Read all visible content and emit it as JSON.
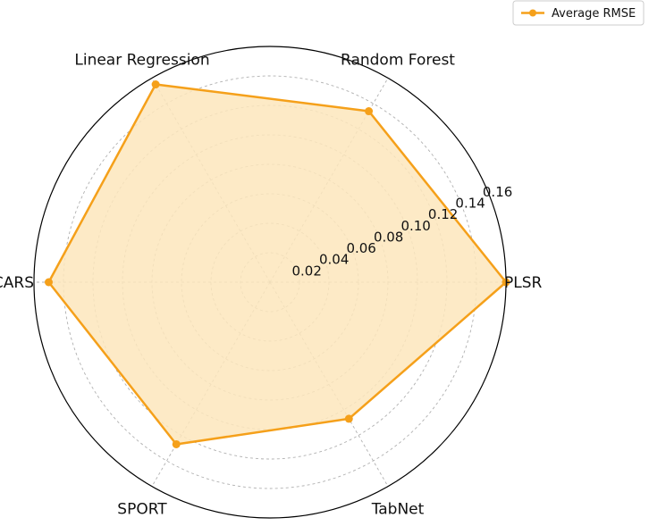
{
  "chart_data": {
    "type": "radar",
    "categories": [
      "PLSR",
      "Random Forest",
      "Linear Regression",
      "CARS",
      "SPORT",
      "TabNet"
    ],
    "series": [
      {
        "name": "Average RMSE",
        "values": [
          0.16,
          0.134,
          0.155,
          0.15,
          0.127,
          0.107
        ],
        "color": "#f5a01a",
        "fill": "#fde6bc"
      }
    ],
    "radial_ticks": [
      "0.02",
      "0.04",
      "0.06",
      "0.08",
      "0.10",
      "0.12",
      "0.14",
      "0.16"
    ],
    "radial_tick_values": [
      0.02,
      0.04,
      0.06,
      0.08,
      0.1,
      0.12,
      0.14,
      0.16
    ],
    "rlim": [
      0,
      0.16
    ],
    "grid": true,
    "legend_position": "top-right",
    "title": ""
  }
}
